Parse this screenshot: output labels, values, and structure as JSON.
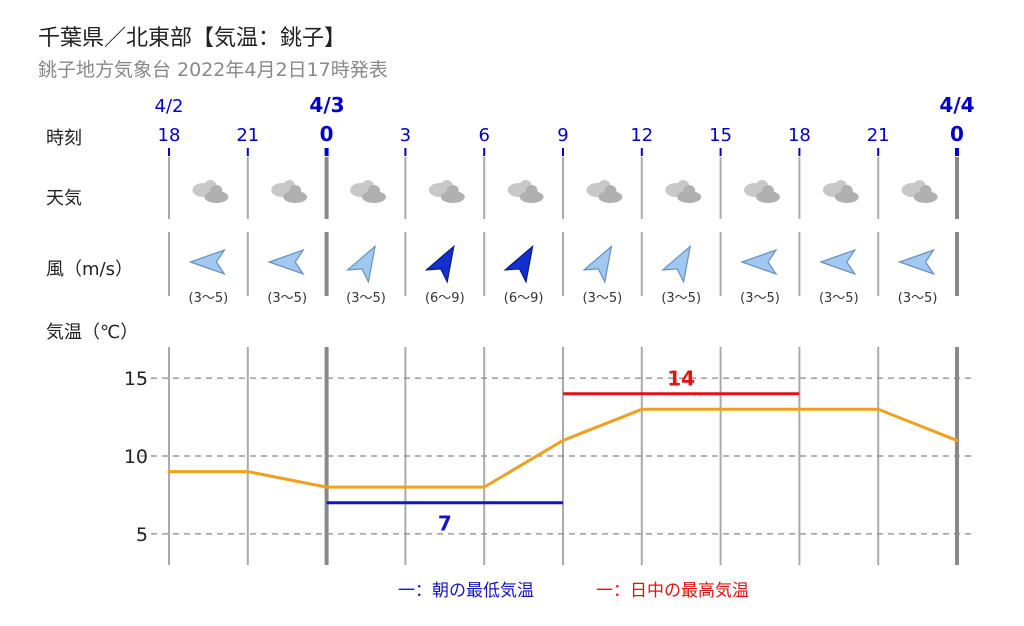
{
  "header": {
    "title": "千葉県／北東部【気温：銚子】",
    "subtitle": "銚子地方気象台 2022年4月2日17時発表"
  },
  "dates": [
    {
      "label": "4/2",
      "bold": false
    },
    {
      "label": "4/3",
      "bold": true
    },
    {
      "label": "4/4",
      "bold": true
    }
  ],
  "row_labels": {
    "time": "時刻",
    "weather": "天気",
    "wind": "風（m/s）",
    "temp": "気温（℃）"
  },
  "icons": {
    "weather": "cloud-icon",
    "wind": "wind-arrow-icon"
  },
  "colors": {
    "temp_line": "#f0a020",
    "min_line": "#1414c8",
    "max_line": "#e01414",
    "date_text": "#0000c8",
    "grid": "#999999",
    "wind_light": "#a0c8f0",
    "wind_strong": "#1030d0"
  },
  "legend": {
    "min_label": "一：朝の最低気温",
    "max_label": "一：日中の最高気温"
  },
  "chart_data": {
    "type": "line",
    "hours": [
      "18",
      "21",
      "0",
      "3",
      "6",
      "9",
      "12",
      "15",
      "18",
      "21",
      "0"
    ],
    "hour_bold": [
      false,
      false,
      true,
      false,
      false,
      false,
      false,
      false,
      false,
      false,
      true
    ],
    "weather": [
      "cloudy",
      "cloudy",
      "cloudy",
      "cloudy",
      "cloudy",
      "cloudy",
      "cloudy",
      "cloudy",
      "cloudy",
      "cloudy"
    ],
    "wind": [
      {
        "dir": "E",
        "speed": "(3～5)",
        "strong": false
      },
      {
        "dir": "E",
        "speed": "(3～5)",
        "strong": false
      },
      {
        "dir": "NE",
        "speed": "(3～5)",
        "strong": false
      },
      {
        "dir": "NE",
        "speed": "(6～9)",
        "strong": true
      },
      {
        "dir": "NE",
        "speed": "(6～9)",
        "strong": true
      },
      {
        "dir": "NE",
        "speed": "(3～5)",
        "strong": false
      },
      {
        "dir": "NE",
        "speed": "(3～5)",
        "strong": false
      },
      {
        "dir": "E",
        "speed": "(3～5)",
        "strong": false
      },
      {
        "dir": "E",
        "speed": "(3～5)",
        "strong": false
      },
      {
        "dir": "E",
        "speed": "(3～5)",
        "strong": false
      }
    ],
    "temperature": [
      9,
      9,
      8,
      8,
      8,
      11,
      13,
      13,
      13,
      13,
      11
    ],
    "min_temp": {
      "value": 7,
      "label": "7",
      "from_index": 2,
      "to_index": 5
    },
    "max_temp": {
      "value": 14,
      "label": "14",
      "from_index": 5,
      "to_index": 8
    },
    "yticks": [
      "5",
      "10",
      "15"
    ],
    "ytick_values": [
      5,
      10,
      15
    ],
    "ylim": [
      3,
      17
    ],
    "grid": true
  }
}
